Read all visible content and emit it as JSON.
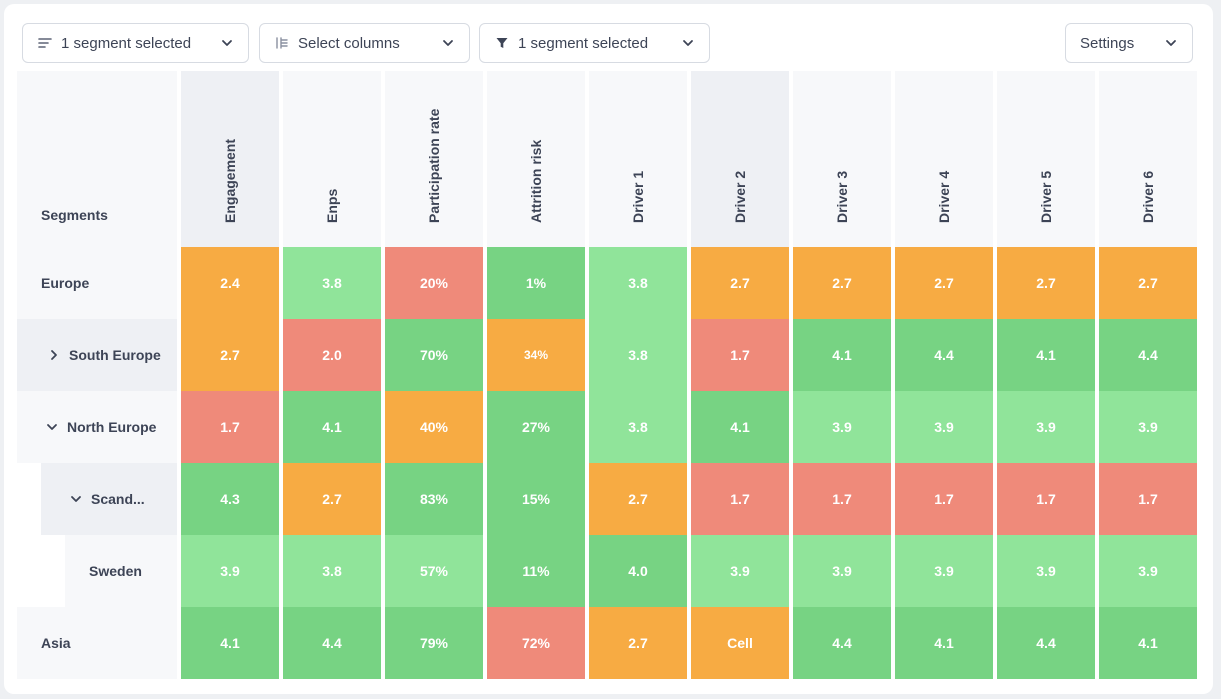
{
  "toolbar": {
    "segments_dropdown": "1 segment selected",
    "columns_dropdown": "Select columns",
    "filter_dropdown": "1 segment selected",
    "settings_dropdown": "Settings"
  },
  "table": {
    "segments_header": "Segments",
    "columns": [
      "Engagement",
      "Enps",
      "Participation rate",
      "Attrition risk",
      "Driver 1",
      "Driver 2",
      "Driver 3",
      "Driver 4",
      "Driver 5",
      "Driver 6"
    ],
    "rows": [
      {
        "label": "Europe",
        "expander": "none",
        "values": [
          "2.4",
          "3.8",
          "20%",
          "1%",
          "3.8",
          "2.7",
          "2.7",
          "2.7",
          "2.7",
          "2.7"
        ]
      },
      {
        "label": "South Europe",
        "expander": "collapsed",
        "values": [
          "2.7",
          "2.0",
          "70%",
          "34%",
          "3.8",
          "1.7",
          "4.1",
          "4.4",
          "4.1",
          "4.4"
        ]
      },
      {
        "label": "North Europe",
        "expander": "expanded",
        "values": [
          "1.7",
          "4.1",
          "40%",
          "27%",
          "3.8",
          "4.1",
          "3.9",
          "3.9",
          "3.9",
          "3.9"
        ]
      },
      {
        "label": "Scand...",
        "expander": "expanded",
        "values": [
          "4.3",
          "2.7",
          "83%",
          "15%",
          "2.7",
          "1.7",
          "1.7",
          "1.7",
          "1.7",
          "1.7"
        ]
      },
      {
        "label": "Sweden",
        "expander": "none",
        "values": [
          "3.9",
          "3.8",
          "57%",
          "11%",
          "4.0",
          "3.9",
          "3.9",
          "3.9",
          "3.9",
          "3.9"
        ]
      },
      {
        "label": "Asia",
        "expander": "none",
        "values": [
          "4.1",
          "4.4",
          "79%",
          "72%",
          "2.7",
          "Cell",
          "4.4",
          "4.1",
          "4.4",
          "4.1"
        ]
      }
    ],
    "colors": [
      [
        "orange",
        "lgreen",
        "red",
        "green",
        "lgreen",
        "orange",
        "orange",
        "orange",
        "orange",
        "orange"
      ],
      [
        "orange",
        "red",
        "green",
        "orange",
        "lgreen",
        "red",
        "green",
        "green",
        "green",
        "green"
      ],
      [
        "red",
        "green",
        "orange",
        "green",
        "lgreen",
        "green",
        "lgreen",
        "lgreen",
        "lgreen",
        "lgreen"
      ],
      [
        "green",
        "orange",
        "green",
        "green",
        "orange",
        "red",
        "red",
        "red",
        "red",
        "red"
      ],
      [
        "lgreen",
        "lgreen",
        "lgreen",
        "green",
        "green",
        "lgreen",
        "lgreen",
        "lgreen",
        "lgreen",
        "lgreen"
      ],
      [
        "green",
        "green",
        "green",
        "red",
        "orange",
        "orange",
        "green",
        "green",
        "green",
        "green"
      ]
    ]
  },
  "palette": {
    "orange": "#f7ab43",
    "red": "#ef8a7a",
    "green": "#77d383",
    "lgreen": "#90e49a"
  }
}
